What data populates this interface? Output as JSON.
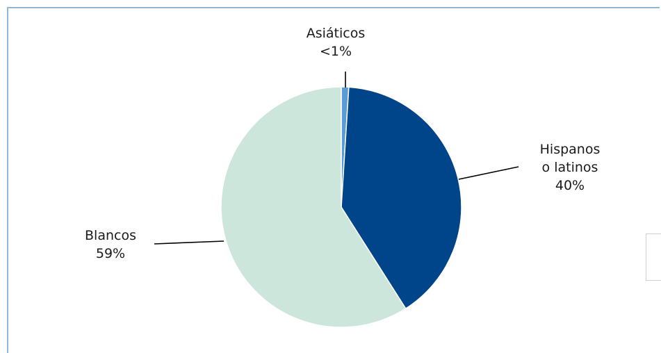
{
  "chart_data": {
    "type": "pie",
    "slices": [
      {
        "label_lines": [
          "Asiáticos",
          "<1%"
        ],
        "value": 1,
        "color": "#5b9bd5"
      },
      {
        "label_lines": [
          "Hispanos",
          "o latinos",
          "40%"
        ],
        "value": 40,
        "color": "#00458a"
      },
      {
        "label_lines": [
          "Blancos",
          "59%"
        ],
        "value": 59,
        "color": "#cde6dc"
      }
    ],
    "legend": "none"
  }
}
